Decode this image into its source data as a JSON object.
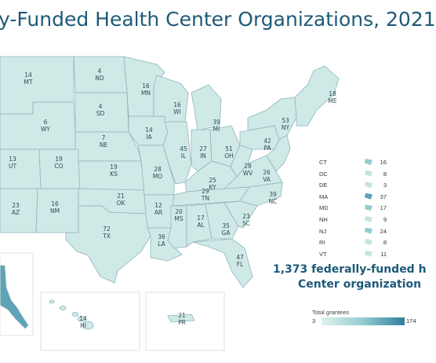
{
  "title": "y-Funded Health Center Organizations, 2021",
  "total_text_line1": "1,373 federally-funded h",
  "total_text_line2": "Center organization",
  "legend": {
    "title": "Total grantees",
    "min": "3",
    "max": "174"
  },
  "colors": {
    "low": "#dff2ef",
    "mid": "#93cdd0",
    "high": "#2f7f9c",
    "title": "#1d5a78"
  },
  "states": {
    "MT": "14",
    "ND": "4",
    "MN": "16",
    "ME": "18",
    "WY": "6",
    "SD": "4",
    "WI": "16",
    "MI": "39",
    "NY": "53",
    "NE": "7",
    "IA": "14",
    "UT": "13",
    "CO": "19",
    "IL": "45",
    "IN": "27",
    "OH": "51",
    "PA": "42",
    "KS": "19",
    "MO": "28",
    "KY": "25",
    "WV": "28",
    "VA": "26",
    "AZ": "23",
    "NM": "16",
    "OK": "21",
    "AR": "12",
    "TN": "29",
    "NC": "39",
    "SC": "23",
    "TX": "72",
    "MS": "20",
    "AL": "17",
    "GA": "35",
    "LA": "36",
    "FL": "47",
    "HI": "14",
    "PR": "21"
  },
  "small_states": [
    {
      "abbr": "CT",
      "value": "16"
    },
    {
      "abbr": "DC",
      "value": "8"
    },
    {
      "abbr": "DE",
      "value": "3"
    },
    {
      "abbr": "MA",
      "value": "37"
    },
    {
      "abbr": "MD",
      "value": "17"
    },
    {
      "abbr": "NH",
      "value": "9"
    },
    {
      "abbr": "NJ",
      "value": "24"
    },
    {
      "abbr": "RI",
      "value": "8"
    },
    {
      "abbr": "VT",
      "value": "11"
    }
  ]
}
